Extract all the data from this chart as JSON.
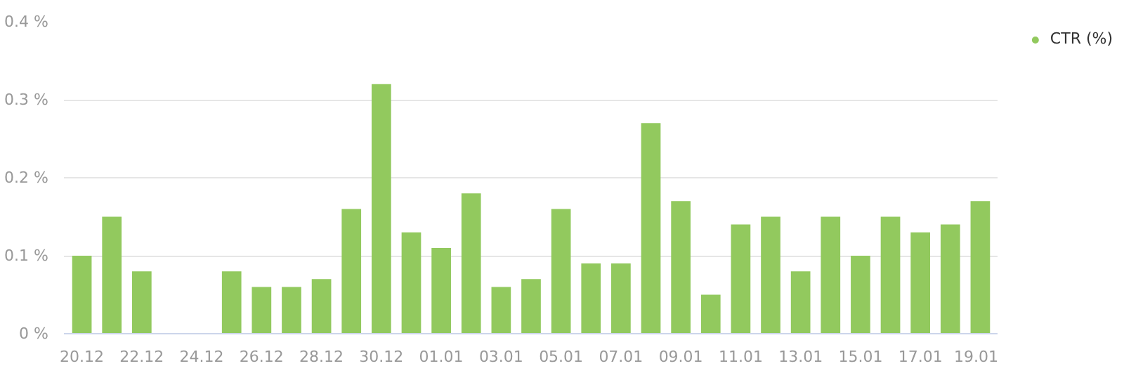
{
  "chart_data": {
    "type": "bar",
    "categories": [
      "20.12",
      null,
      "22.12",
      null,
      "24.12",
      null,
      "26.12",
      null,
      "28.12",
      null,
      "30.12",
      null,
      "01.01",
      null,
      "03.01",
      null,
      "05.01",
      null,
      "07.01",
      null,
      "09.01",
      null,
      "11.01",
      null,
      "13.01",
      null,
      "15.01",
      null,
      "17.01",
      null,
      "19.01"
    ],
    "series": [
      {
        "name": "CTR (%)",
        "color": "#92c95e",
        "values": [
          0.1,
          0.15,
          0.08,
          0,
          0,
          0.08,
          0.06,
          0.06,
          0.07,
          0.16,
          0.32,
          0.13,
          0.11,
          0.18,
          0.06,
          0.07,
          0.16,
          0.09,
          0.09,
          0.27,
          0.17,
          0.05,
          0.14,
          0.15,
          0.08,
          0.15,
          0.1,
          0.15,
          0.13,
          0.14,
          0.17
        ]
      }
    ],
    "ylim": [
      0,
      0.4
    ],
    "yticks": [
      {
        "value": 0,
        "label": "0 %"
      },
      {
        "value": 0.1,
        "label": "0.1 %"
      },
      {
        "value": 0.2,
        "label": "0.2 %"
      },
      {
        "value": 0.3,
        "label": "0.3 %"
      },
      {
        "value": 0.4,
        "label": "0.4 %"
      }
    ],
    "grid": "y",
    "legend": "top right"
  }
}
